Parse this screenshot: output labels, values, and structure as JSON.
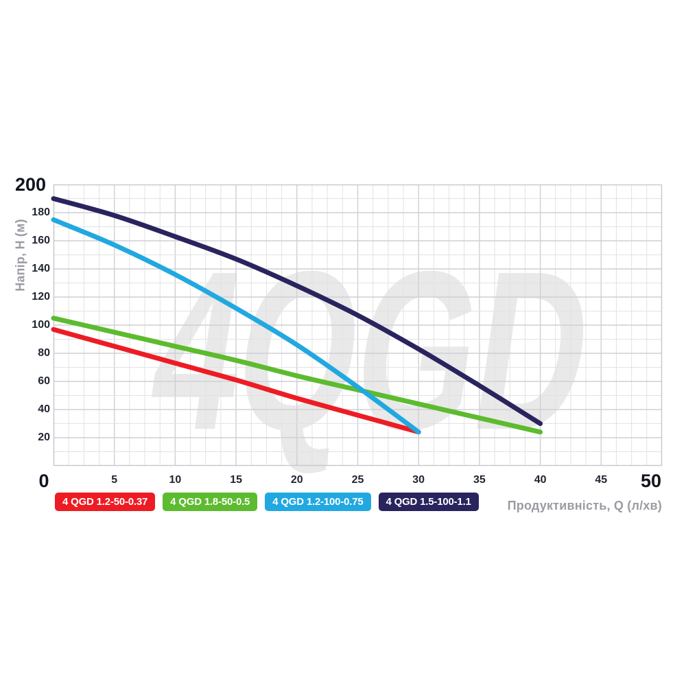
{
  "chart_data": {
    "type": "line",
    "title": "",
    "watermark": "4QGD",
    "xlabel": "Продуктивність, Q (л/хв)",
    "ylabel": "Напір, H (м)",
    "xlim": [
      0,
      50
    ],
    "ylim": [
      0,
      200
    ],
    "x_ticks": [
      0,
      5,
      10,
      15,
      20,
      25,
      30,
      35,
      40,
      45,
      50
    ],
    "y_ticks": [
      20,
      40,
      60,
      80,
      100,
      120,
      140,
      160,
      180,
      200
    ],
    "grid": {
      "on": true,
      "x_minor_step": 1.25,
      "x_major_step": 5,
      "y_minor_step": 10,
      "y_major_step": 20,
      "minor_color": "#e2e2e5",
      "major_color": "#cfcfd5",
      "border_color": "#c6c6cc"
    },
    "legend_position": "bottom",
    "series": [
      {
        "name": "4 QGD 1.2-50-0.37",
        "color": "#ed1c24",
        "q": [
          0,
          5,
          10,
          15,
          20,
          25,
          30
        ],
        "h": [
          97,
          85,
          73,
          61,
          48,
          36,
          24
        ]
      },
      {
        "name": "4 QGD 1.8-50-0.5",
        "color": "#5cbb2e",
        "q": [
          0,
          5,
          10,
          15,
          20,
          25,
          30,
          35,
          40
        ],
        "h": [
          105,
          95,
          85,
          75,
          64,
          54,
          44,
          34,
          24
        ]
      },
      {
        "name": "4 QGD 1.2-100-0.75",
        "color": "#21a8e0",
        "q": [
          0,
          5,
          10,
          15,
          20,
          25,
          30
        ],
        "h": [
          175,
          157,
          136,
          112,
          86,
          56,
          24
        ]
      },
      {
        "name": "4 QGD 1.5-100-1.1",
        "color": "#29245e",
        "q": [
          0,
          5,
          10,
          15,
          20,
          25,
          30,
          35,
          40
        ],
        "h": [
          190,
          178,
          163,
          147,
          128,
          107,
          83,
          57,
          30
        ]
      }
    ],
    "colors": {
      "tick_text": "#1f2430",
      "big_tick_text": "#12141d",
      "axis_title_text": "#9b9ba3",
      "watermark": "#e9e9e9",
      "background": "#ffffff"
    }
  }
}
